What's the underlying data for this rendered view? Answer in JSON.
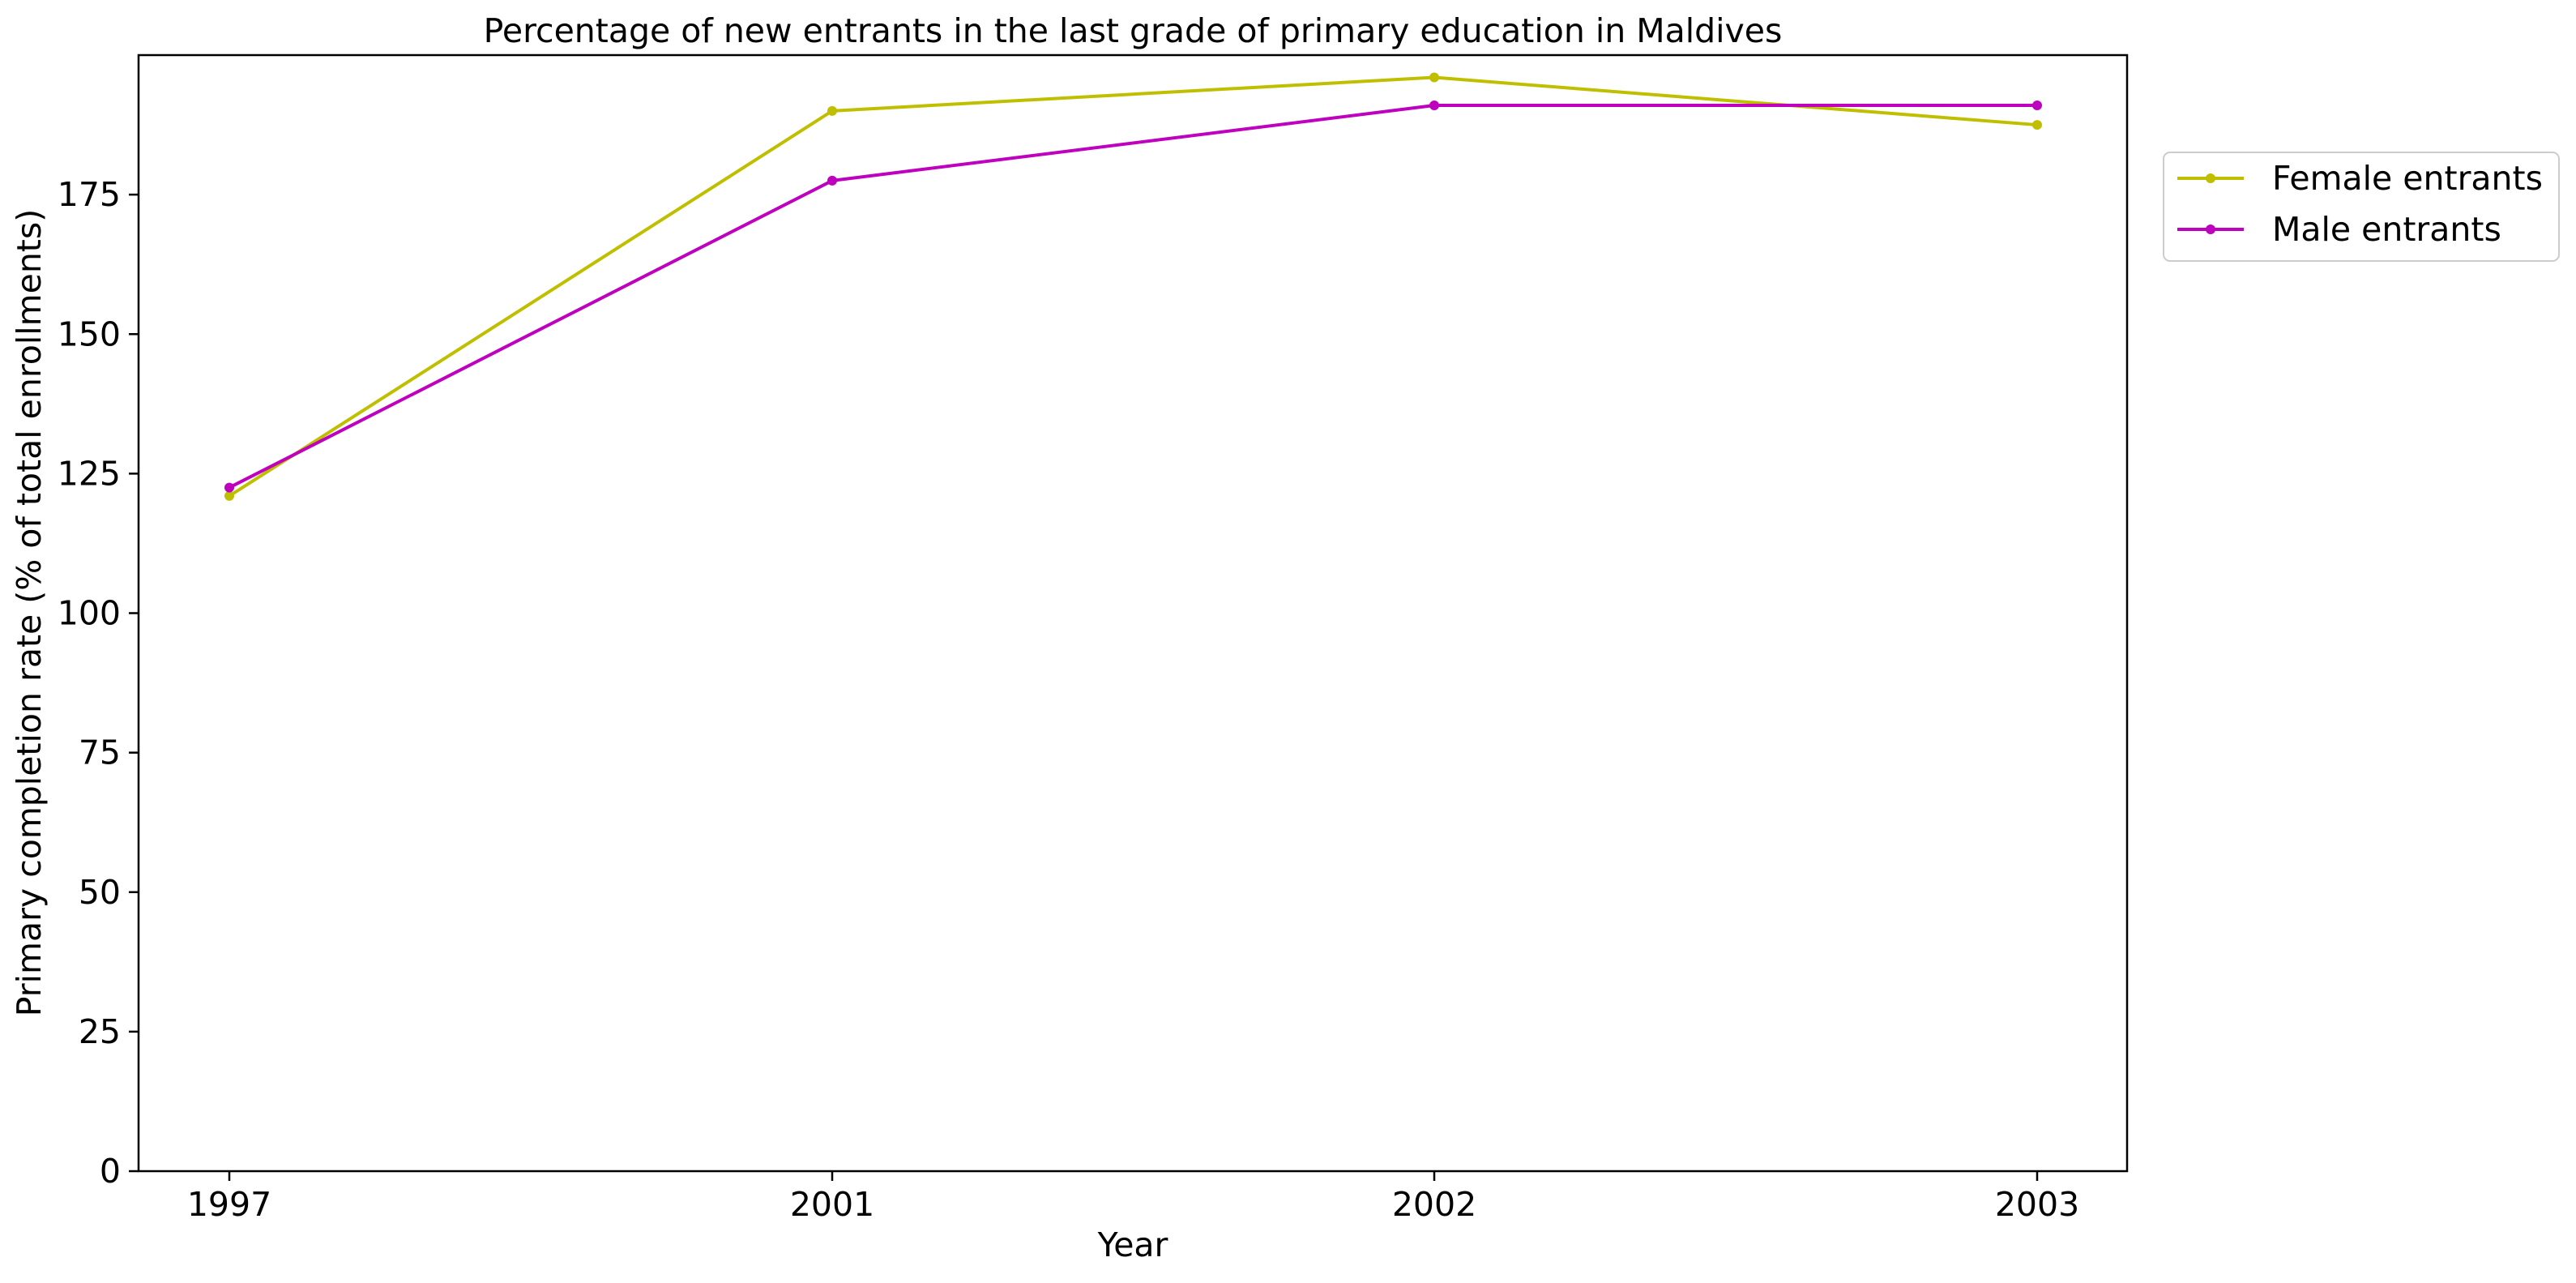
{
  "chart_data": {
    "type": "line",
    "title": "Percentage of new entrants in the last grade of primary education in Maldives",
    "xlabel": "Year",
    "ylabel": "Primary completion rate (% of total enrollments)",
    "categories": [
      "1997",
      "2001",
      "2002",
      "2003"
    ],
    "series": [
      {
        "name": "Female entrants",
        "color": "#bfbf00",
        "values": [
          121,
          190,
          196,
          187.5
        ]
      },
      {
        "name": "Male entrants",
        "color": "#bf00bf",
        "values": [
          122.5,
          177.5,
          191,
          191
        ]
      }
    ],
    "ylim": [
      0,
      200
    ],
    "yticks": [
      0,
      25,
      50,
      75,
      100,
      125,
      150,
      175
    ],
    "grid": false,
    "legend_position": "outside-right-top"
  }
}
